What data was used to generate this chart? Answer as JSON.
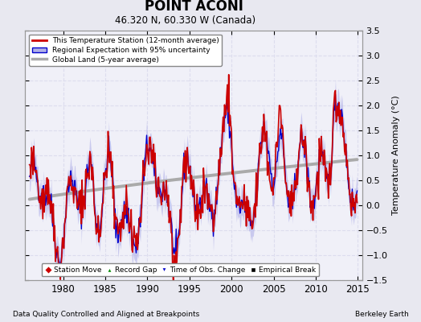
{
  "title": "POINT ACONI",
  "subtitle": "46.320 N, 60.330 W (Canada)",
  "ylabel": "Temperature Anomaly (°C)",
  "xlabel_bottom_left": "Data Quality Controlled and Aligned at Breakpoints",
  "xlabel_bottom_right": "Berkeley Earth",
  "ylim": [
    -1.5,
    3.5
  ],
  "xlim": [
    1975.5,
    2015.5
  ],
  "yticks": [
    -1.5,
    -1.0,
    -0.5,
    0.0,
    0.5,
    1.0,
    1.5,
    2.0,
    2.5,
    3.0,
    3.5
  ],
  "xticks": [
    1980,
    1985,
    1990,
    1995,
    2000,
    2005,
    2010,
    2015
  ],
  "color_station": "#cc0000",
  "color_regional": "#0000cc",
  "color_regional_fill": "#b0b0e8",
  "color_global": "#aaaaaa",
  "plot_bg": "#f0f0f8",
  "fig_bg": "#e8e8f0",
  "grid_color": "#ddddee",
  "legend_labels": [
    "This Temperature Station (12-month average)",
    "Regional Expectation with 95% uncertainty",
    "Global Land (5-year average)"
  ],
  "bottom_legend": [
    "Station Move",
    "Record Gap",
    "Time of Obs. Change",
    "Empirical Break"
  ]
}
